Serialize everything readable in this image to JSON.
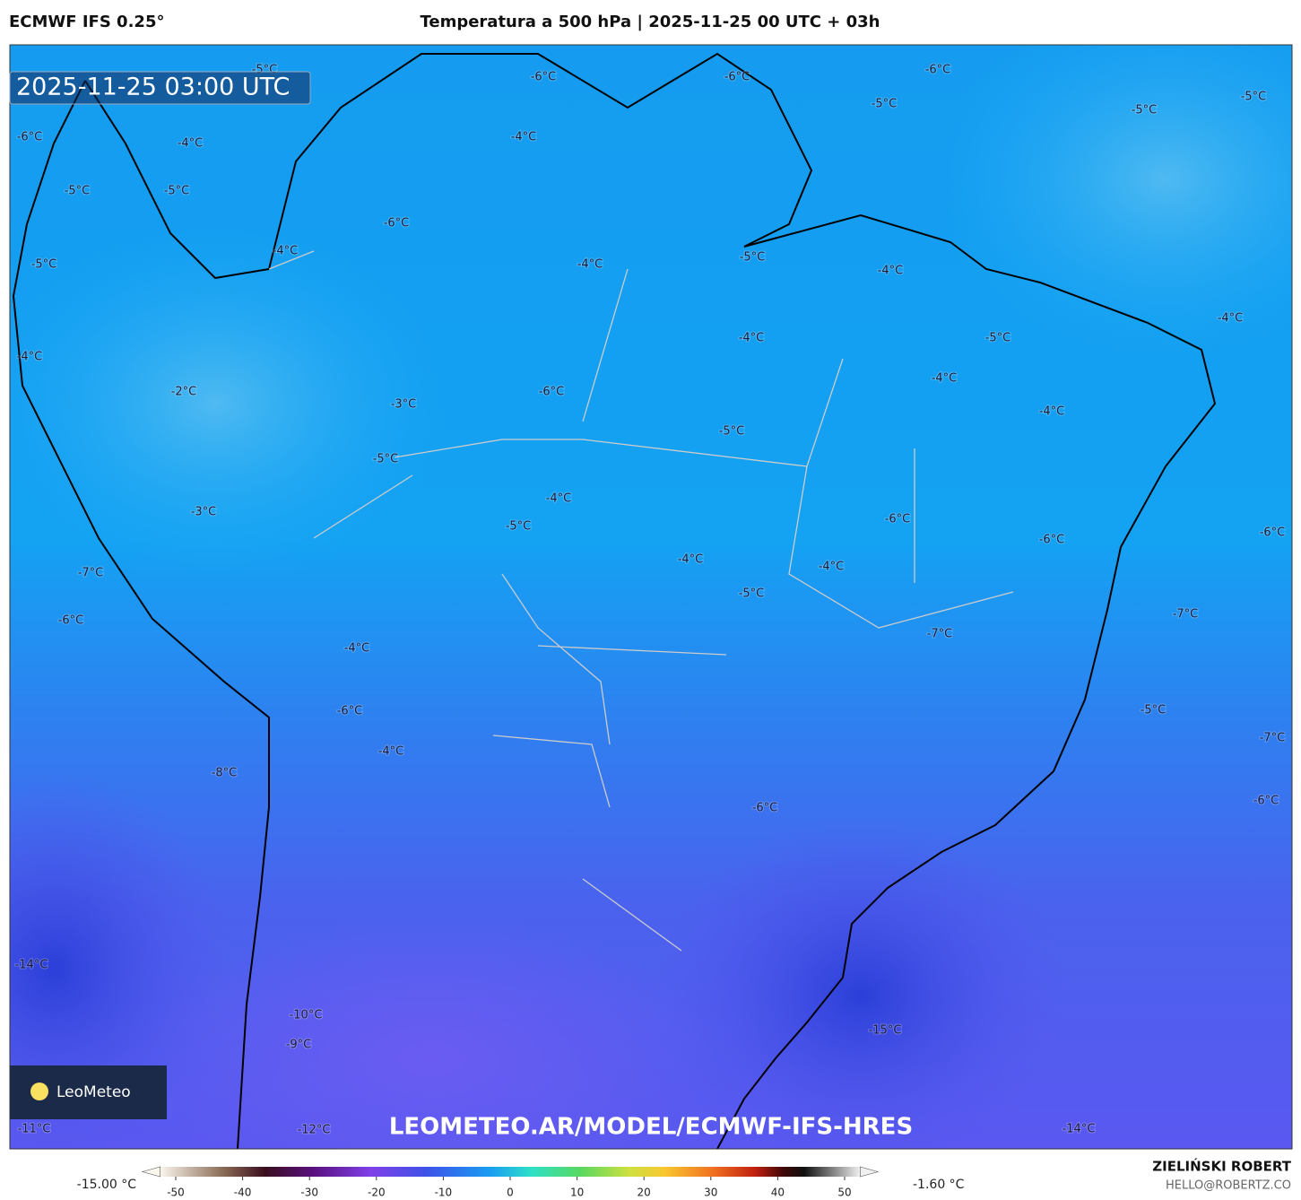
{
  "header": {
    "model": "ECMWF IFS 0.25°",
    "title": "Temperatura a 500 hPa | 2025-11-25 00 UTC + 03h"
  },
  "map": {
    "timestamp": "2025-11-25 03:00 UTC",
    "logo": "LeoMeteo",
    "watermark": "LEOMETEO.AR/MODEL/ECMWF-IFS-HRES",
    "contour_labels": [
      "-6°C",
      "-6°C",
      "-6°C",
      "-5°C",
      "-5°C",
      "-5°C",
      "-5°C",
      "-6°C",
      "-4°C",
      "-4°C",
      "-5°C",
      "-5°C",
      "-6°C",
      "-4°C",
      "-5°C",
      "-4°C",
      "-5°C",
      "-4°C",
      "-4°C",
      "-4°C",
      "-5°C",
      "-4°C",
      "-4°C",
      "-2°C",
      "-6°C",
      "-3°C",
      "-4°C",
      "-5°C",
      "-5°C",
      "-4°C",
      "-3°C",
      "-5°C",
      "-6°C",
      "-6°C",
      "-6°C",
      "-4°C",
      "-4°C",
      "-7°C",
      "-5°C",
      "-7°C",
      "-6°C",
      "-7°C",
      "-4°C",
      "-6°C",
      "-5°C",
      "-4°C",
      "-7°C",
      "-8°C",
      "-6°C",
      "-6°C",
      "-14°C",
      "-10°C",
      "-15°C",
      "-9°C",
      "-11°C",
      "-12°C",
      "-14°C"
    ]
  },
  "colorbar": {
    "min_label": "-15.00 °C",
    "max_label": "-1.60 °C",
    "lim": [
      -55,
      55
    ],
    "ticks": [
      -50,
      -40,
      -30,
      -20,
      -10,
      0,
      10,
      20,
      30,
      40,
      50
    ]
  },
  "footer": {
    "author": "ZIELIŃSKI ROBERT",
    "email": "HELLO@ROBERTZ.CO"
  }
}
